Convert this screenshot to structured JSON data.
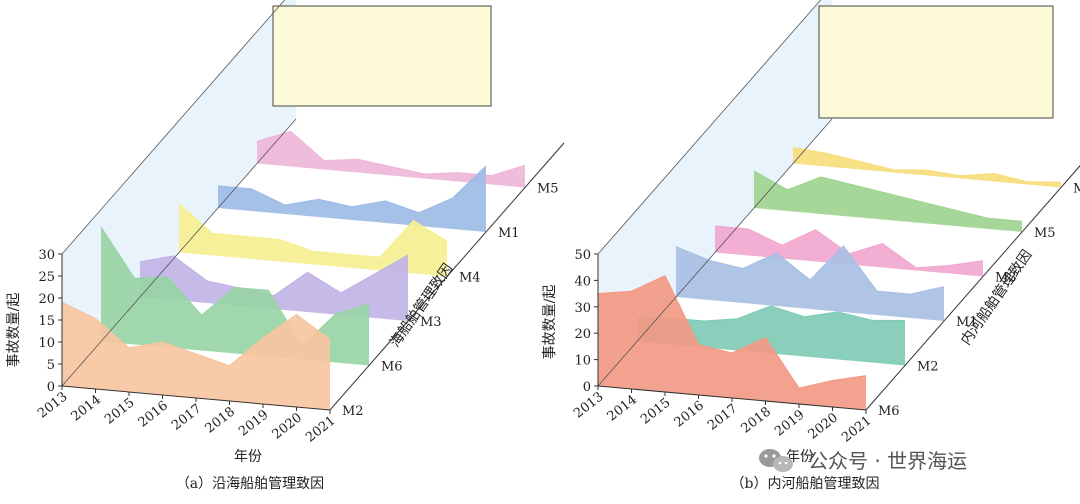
{
  "chart_data": [
    {
      "type": "area",
      "caption": "（a）沿海船舶管理致因",
      "xlabel": "年份",
      "ylabel": "事故数量/起",
      "depth_label": "海船舶管理致因",
      "years": [
        "2013",
        "2014",
        "2015",
        "2016",
        "2017",
        "2018",
        "2019",
        "2020",
        "2021"
      ],
      "ylim": [
        0,
        30
      ],
      "yticks": [
        "0",
        "5",
        "10",
        "15",
        "20",
        "25",
        "30"
      ],
      "series": [
        {
          "name": "M2",
          "color": "#f7c5a0",
          "values": [
            19,
            16,
            10,
            12,
            10,
            8,
            15,
            21,
            16
          ]
        },
        {
          "name": "M6",
          "color": "#98d4a5",
          "values": [
            26,
            15,
            16,
            8,
            15,
            15,
            3,
            11,
            14
          ]
        },
        {
          "name": "M3",
          "color": "#c0b4e6",
          "values": [
            8,
            10,
            5,
            4,
            3,
            9,
            5,
            10,
            15
          ]
        },
        {
          "name": "M4",
          "color": "#f6ef92",
          "values": [
            11,
            5,
            5,
            5,
            3,
            3,
            3,
            12,
            8
          ]
        },
        {
          "name": "M1",
          "color": "#9ebce6",
          "values": [
            5,
            5,
            2,
            4,
            3,
            5,
            3,
            7,
            15
          ]
        },
        {
          "name": "M5",
          "color": "#efb6d9",
          "values": [
            5,
            8,
            2,
            3,
            2,
            1,
            2,
            2,
            5
          ]
        }
      ]
    },
    {
      "type": "area",
      "caption": "（b）内河船舶管理致因",
      "xlabel": "年份",
      "ylabel": "事故数量/起",
      "depth_label": "内河船舶管理致因",
      "years": [
        "2013",
        "2014",
        "2015",
        "2016",
        "2017",
        "2018",
        "2019",
        "2020",
        "2021"
      ],
      "ylim": [
        0,
        50
      ],
      "yticks": [
        "0",
        "10",
        "20",
        "30",
        "40",
        "50"
      ],
      "series": [
        {
          "name": "M6",
          "color": "#f29a86",
          "values": [
            35,
            37,
            44,
            19,
            17,
            24,
            6,
            10,
            13
          ]
        },
        {
          "name": "M2",
          "color": "#7fcbb5",
          "values": [
            9,
            10,
            10,
            12,
            18,
            15,
            18,
            16,
            17
          ]
        },
        {
          "name": "M1",
          "color": "#a9bfe4",
          "values": [
            19,
            15,
            13,
            20,
            11,
            25,
            9,
            9,
            13
          ]
        },
        {
          "name": "M3",
          "color": "#f1a8cf",
          "values": [
            10,
            10,
            5,
            12,
            4,
            9,
            1,
            3,
            6
          ]
        },
        {
          "name": "M5",
          "color": "#9fd48f",
          "values": [
            14,
            8,
            14,
            12,
            10,
            8,
            6,
            4,
            4
          ]
        },
        {
          "name": "M4",
          "color": "#f7dd7c",
          "values": [
            6,
            5,
            3,
            1,
            2,
            1,
            3,
            1,
            2
          ]
        }
      ]
    }
  ],
  "watermark": "公众号 · 世界海运"
}
